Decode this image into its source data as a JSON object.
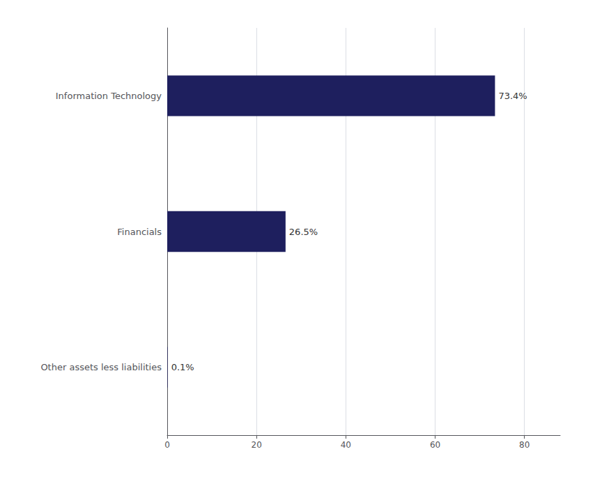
{
  "chart_data": {
    "type": "bar",
    "orientation": "horizontal",
    "categories": [
      "Information Technology",
      "Financials",
      "Other assets less liabilities"
    ],
    "values": [
      73.4,
      26.5,
      0.1
    ],
    "value_labels": [
      "73.4%",
      "26.5%",
      "0.1%"
    ],
    "color": "#1e1f5e",
    "xlim": [
      0,
      88
    ],
    "xticks": [
      0,
      20,
      40,
      60,
      80
    ],
    "grid": true
  }
}
